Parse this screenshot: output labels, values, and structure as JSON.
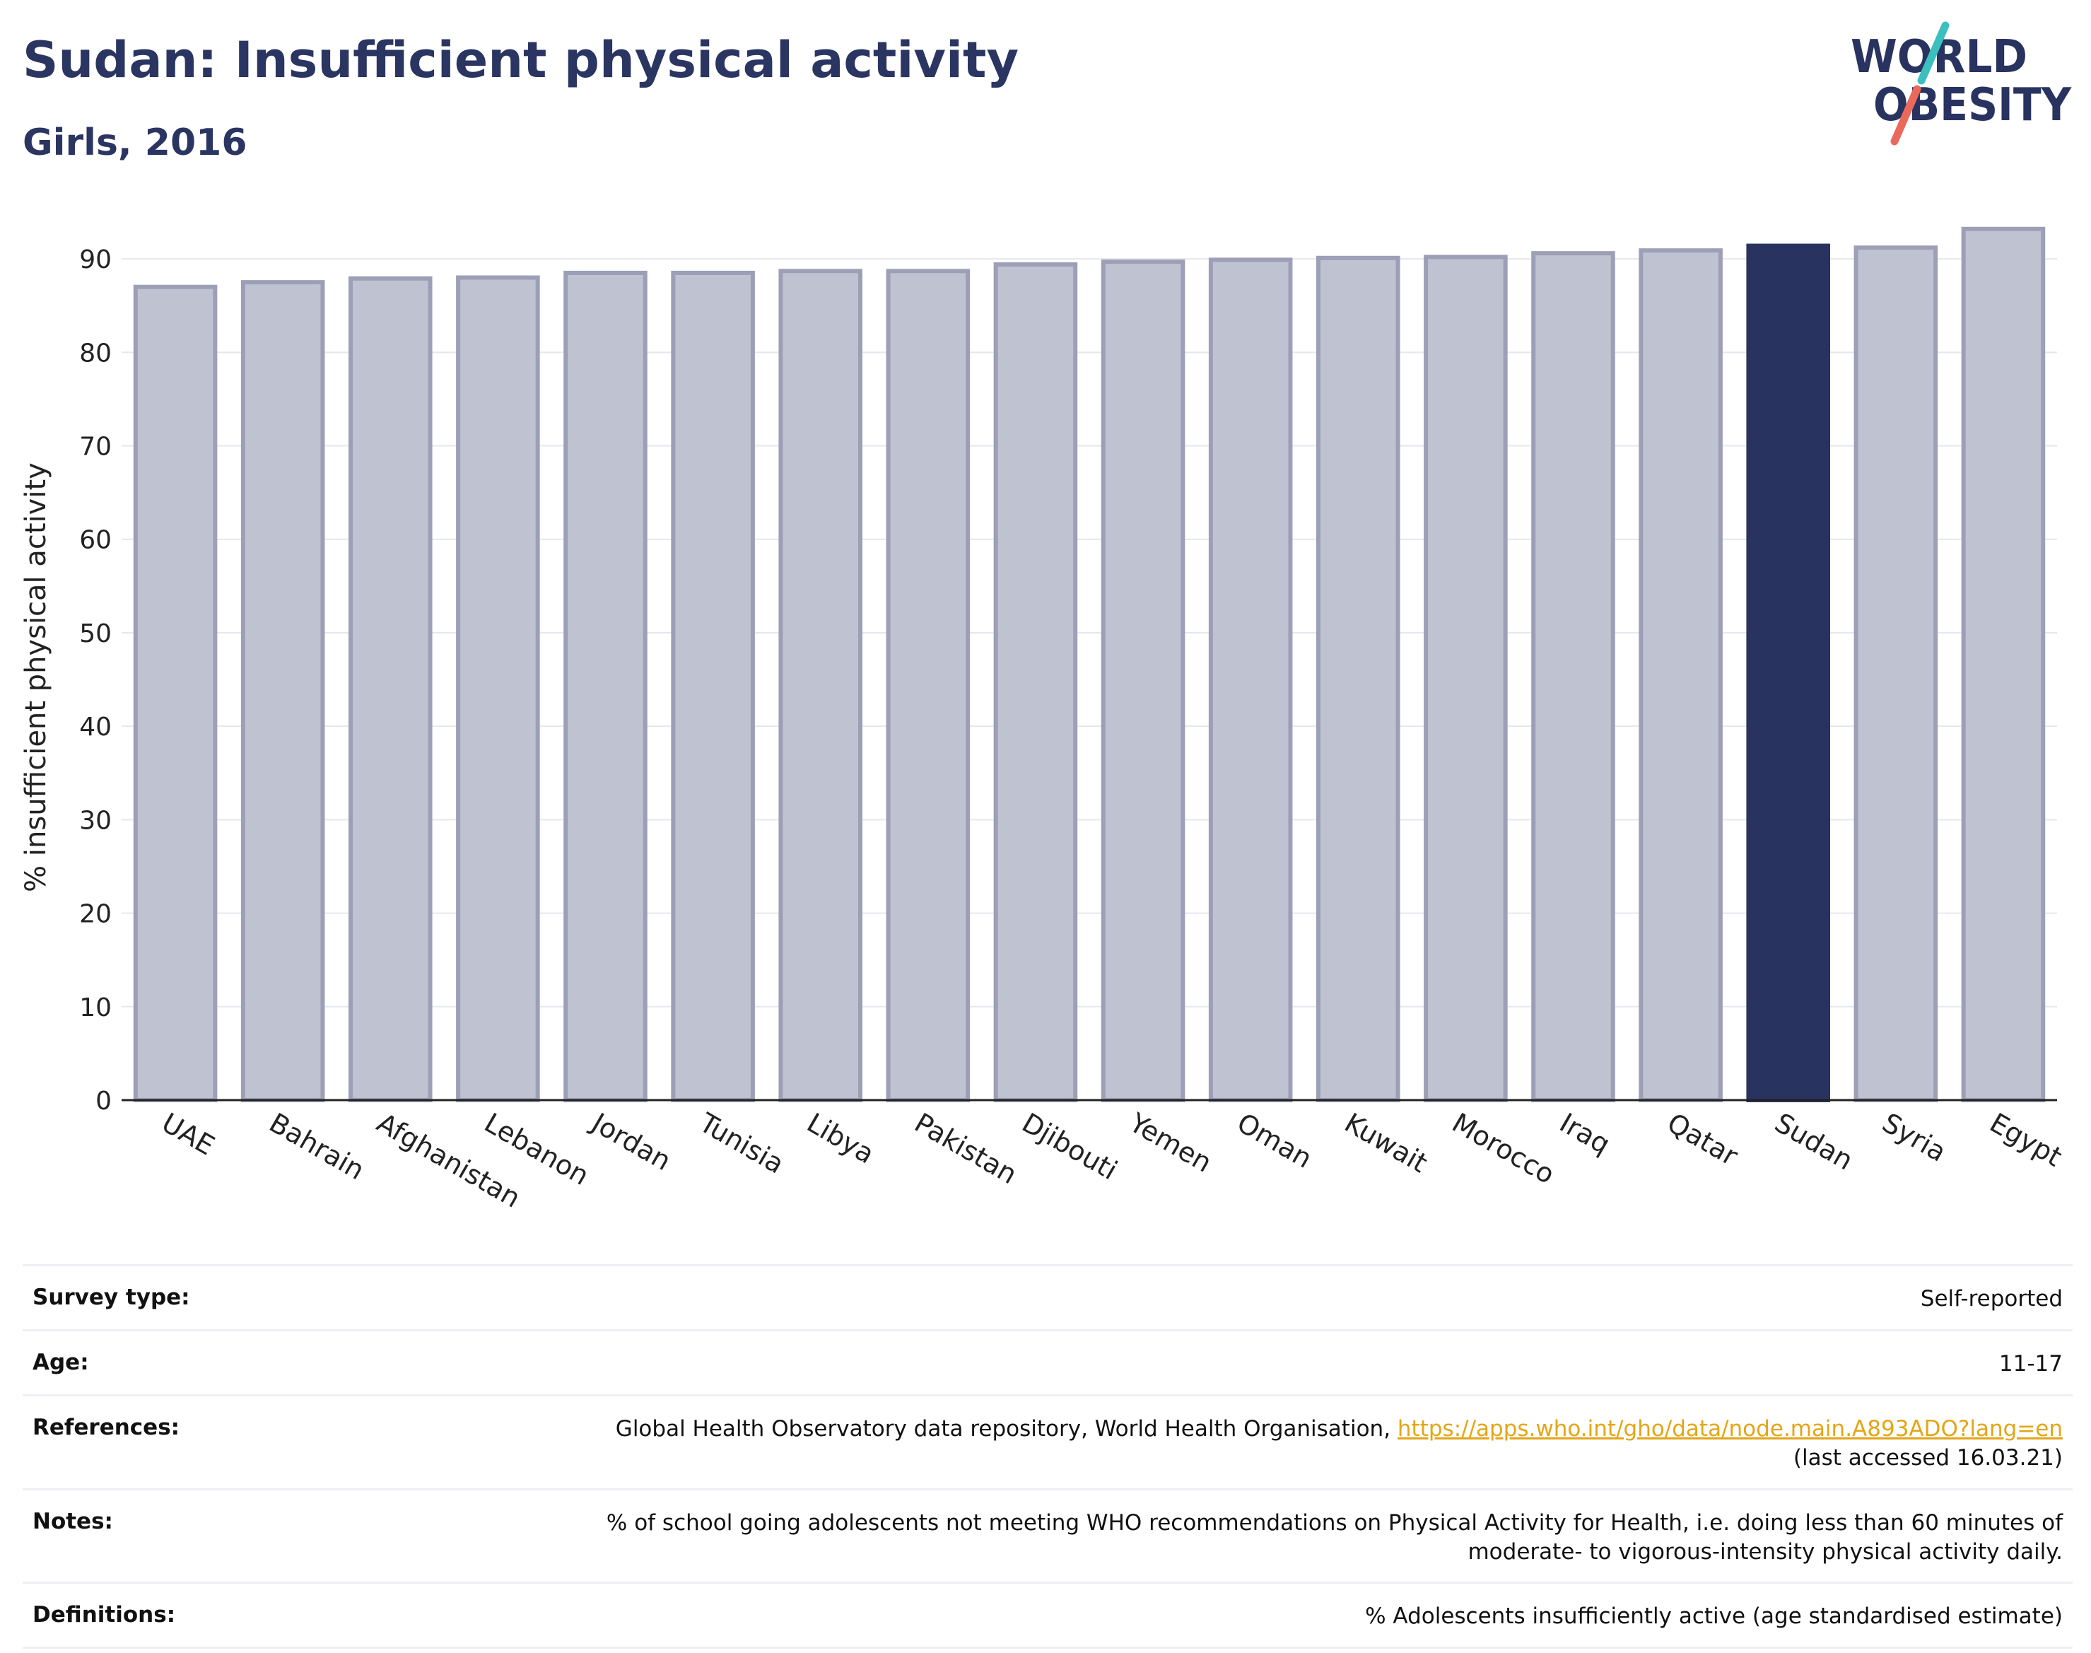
{
  "header": {
    "title": "Sudan: Insufficient physical activity",
    "subtitle": "Girls, 2016"
  },
  "logo": {
    "line1": "WORLD",
    "line2": "OBESITY",
    "colors": {
      "text": "#283360",
      "slash_teal": "#3bbfbf",
      "slash_coral": "#e96a5b"
    }
  },
  "chart_data": {
    "type": "bar",
    "categories": [
      "UAE",
      "Bahrain",
      "Afghanistan",
      "Lebanon",
      "Jordan",
      "Tunisia",
      "Libya",
      "Pakistan",
      "Djibouti",
      "Yemen",
      "Oman",
      "Kuwait",
      "Morocco",
      "Iraq",
      "Qatar",
      "Sudan",
      "Syria",
      "Egypt"
    ],
    "values": [
      87.0,
      87.5,
      87.9,
      88.0,
      88.5,
      88.5,
      88.7,
      88.7,
      89.4,
      89.7,
      89.9,
      90.1,
      90.2,
      90.6,
      90.9,
      91.4,
      91.2,
      93.2
    ],
    "highlight": "Sudan",
    "ylabel": "% insufficient physical activity",
    "ylim": [
      0,
      95
    ],
    "yticks": [
      0,
      10,
      20,
      30,
      40,
      50,
      60,
      70,
      80,
      90
    ],
    "grid": true,
    "colors": {
      "bar": "#bfc2d0",
      "bar_border": "#9c9fb6",
      "highlight": "#283360",
      "grid": "#e6e7ee",
      "axis": "#222222"
    }
  },
  "meta": {
    "survey_type": {
      "label": "Survey type:",
      "value": "Self-reported"
    },
    "age": {
      "label": "Age:",
      "value": "11-17"
    },
    "references": {
      "label": "References:",
      "text": "Global Health Observatory data repository, World Health Organisation, ",
      "link": "https://apps.who.int/gho/data/node.main.A893ADO?lang=en",
      "accessed": "(last accessed 16.03.21)"
    },
    "notes": {
      "label": "Notes:",
      "line1": "% of school going adolescents not meeting WHO recommendations on Physical Activity for Health, i.e. doing less than 60 minutes of",
      "line2": "moderate- to vigorous-intensity physical activity daily."
    },
    "definitions": {
      "label": "Definitions:",
      "value": "% Adolescents insufficiently active (age standardised estimate)"
    }
  }
}
